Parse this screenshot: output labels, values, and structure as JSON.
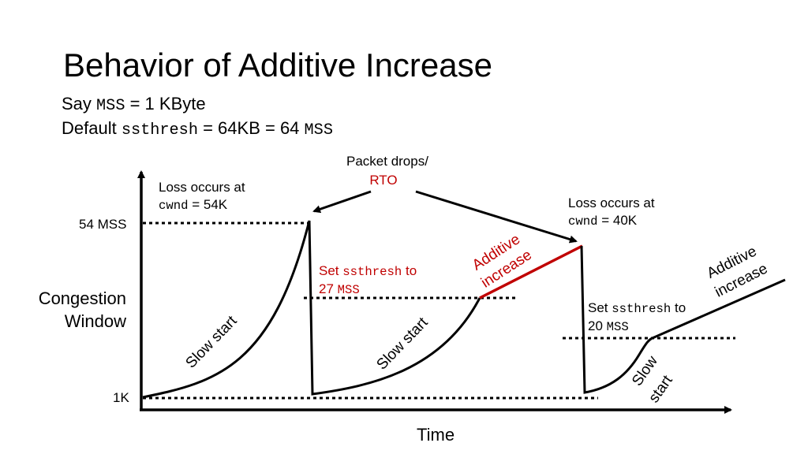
{
  "title": "Behavior of Additive Increase",
  "subtitle1": {
    "a": "Say ",
    "b": "MSS",
    "c": " = 1 KByte"
  },
  "subtitle2": {
    "a": "Default ",
    "b": "ssthresh",
    "c": " = 64KB = 64 ",
    "d": "MSS"
  },
  "axes": {
    "ylabel_line1": "Congestion",
    "ylabel_line2": "Window",
    "xlabel": "Time",
    "y_top_label": "54 MSS",
    "y_bottom_label": "1K"
  },
  "drops": {
    "line1": "Packet drops/",
    "line2": "RTO"
  },
  "loss1": {
    "line1": "Loss occurs at",
    "var": "cwnd",
    "rest": " = 54K"
  },
  "loss2": {
    "line1": "Loss occurs at",
    "var": "cwnd",
    "rest": " = 40K"
  },
  "set1": {
    "a": "Set ",
    "var": "ssthresh",
    "b": " to",
    "c": "27 ",
    "unit": "MSS"
  },
  "set2": {
    "a": "Set ",
    "var": "ssthresh",
    "b": " to",
    "c": "20 ",
    "unit": "MSS"
  },
  "curve_labels": {
    "slow_start_1": "Slow start",
    "slow_start_2": "Slow start",
    "slow_start_3_line1": "Slow",
    "slow_start_3_line2": "start",
    "additive_1_line1": "Additive",
    "additive_1_line2": "increase",
    "additive_2_line1": "Additive",
    "additive_2_line2": "increase"
  },
  "colors": {
    "accent": "#c00000",
    "line": "#000000"
  }
}
